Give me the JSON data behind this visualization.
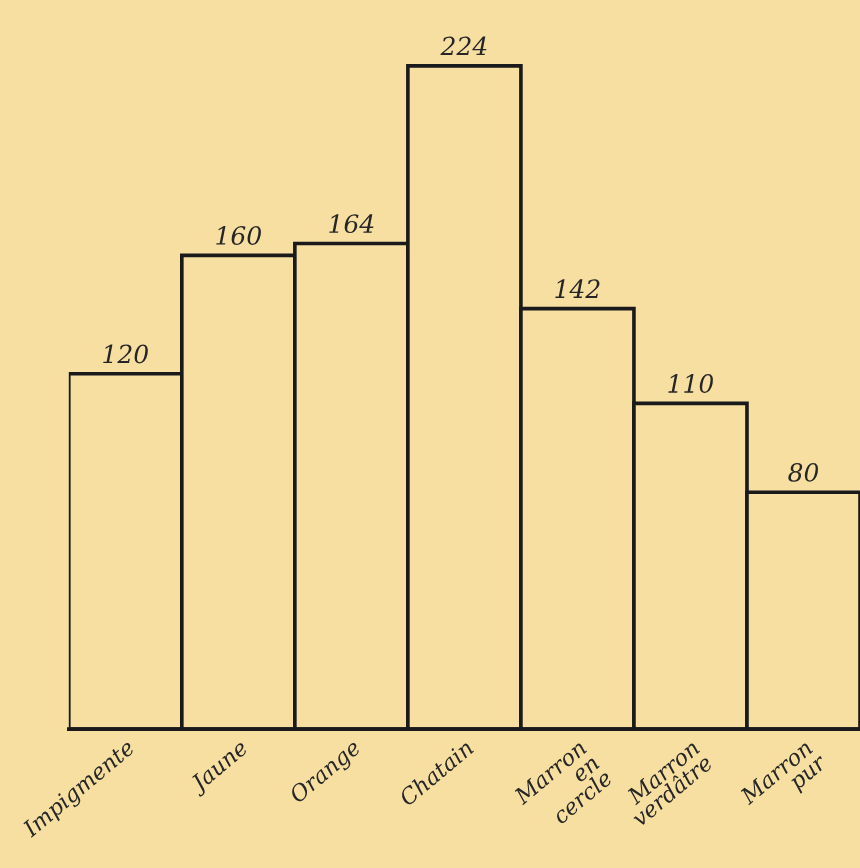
{
  "chart_data": {
    "type": "bar",
    "categories": [
      "Impigmente",
      "Jaune",
      "Orange",
      "Chatain",
      "Marron\nen\ncercle",
      "Marron\nverdâtre",
      "Marron\npur"
    ],
    "values": [
      120,
      160,
      164,
      224,
      142,
      110,
      80
    ],
    "color": "#f7dfa2",
    "data_labels": true,
    "grid": false,
    "legend": false
  }
}
